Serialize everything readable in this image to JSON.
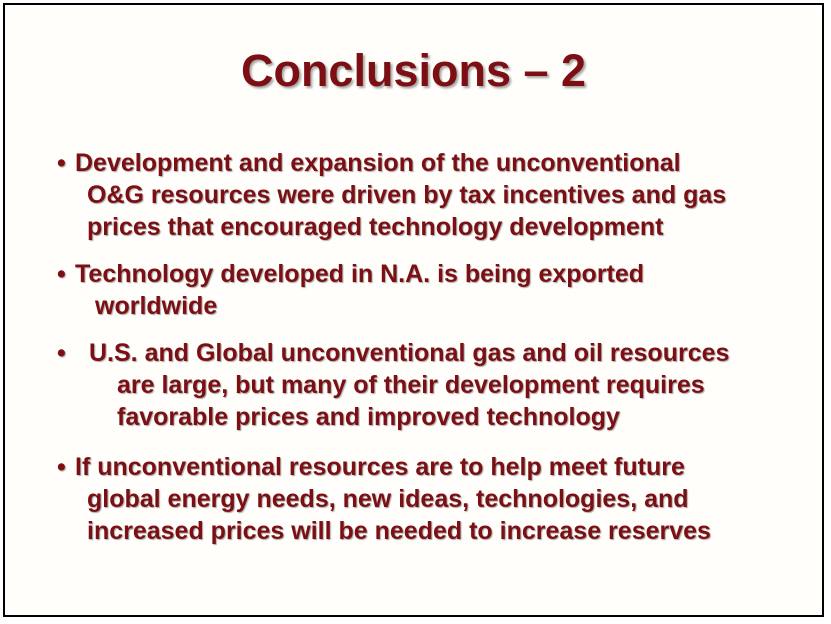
{
  "slide": {
    "title": "Conclusions – 2",
    "bullet_char": "•",
    "bullets": [
      {
        "lines": [
          "Development and expansion of the unconventional",
          "O&G resources were driven by tax incentives and gas",
          "prices that encouraged technology development"
        ]
      },
      {
        "lines": [
          "Technology developed in  N.A. is being exported",
          "worldwide"
        ]
      },
      {
        "lines": [
          "U.S. and Global unconventional gas and oil resources",
          "are large, but many of their development requires",
          "favorable prices and improved technology"
        ]
      },
      {
        "lines": [
          "If unconventional resources are to help meet future",
          "global energy needs, new ideas, technologies, and",
          "increased prices will be needed to increase reserves"
        ]
      }
    ]
  },
  "colors": {
    "text": "#7b0f14",
    "border": "#000000",
    "background": "#fffefb"
  }
}
